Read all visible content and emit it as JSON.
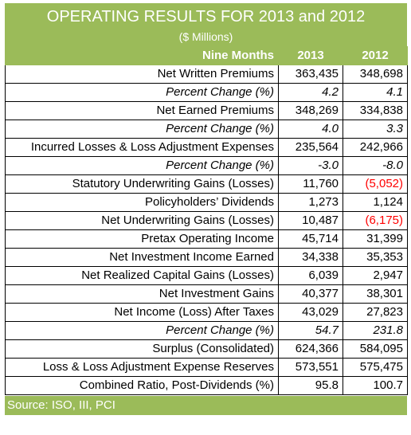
{
  "title": "OPERATING RESULTS FOR 2013 and 2012",
  "subtitle": "($ Millions)",
  "header": {
    "label": "Nine Months",
    "col1": "2013",
    "col2": "2012"
  },
  "rows": [
    {
      "label": "Net Written Premiums",
      "v2013": "363,435",
      "v2012": "348,698"
    },
    {
      "label": "Percent Change (%)",
      "v2013": "4.2",
      "v2012": "4.1"
    },
    {
      "label": "Net Earned Premiums",
      "v2013": "348,269",
      "v2012": "334,838"
    },
    {
      "label": "Percent Change (%)",
      "v2013": "4.0",
      "v2012": "3.3"
    },
    {
      "label": "Incurred Losses & Loss Adjustment Expenses",
      "v2013": "235,564",
      "v2012": "242,966"
    },
    {
      "label": "Percent Change (%)",
      "v2013": "-3.0",
      "v2012": "-8.0"
    },
    {
      "label": "Statutory Underwriting Gains (Losses)",
      "v2013": "11,760",
      "v2012": "(5,052)"
    },
    {
      "label": "Policyholders’ Dividends",
      "v2013": "1,273",
      "v2012": "1,124"
    },
    {
      "label": "Net Underwriting Gains (Losses)",
      "v2013": "10,487",
      "v2012": "(6,175)"
    },
    {
      "label": "Pretax Operating Income",
      "v2013": "45,714",
      "v2012": "31,399"
    },
    {
      "label": "Net Investment Income Earned",
      "v2013": "34,338",
      "v2012": "35,353"
    },
    {
      "label": "Net Realized Capital Gains (Losses)",
      "v2013": "6,039",
      "v2012": "2,947"
    },
    {
      "label": "Net Investment Gains",
      "v2013": "40,377",
      "v2012": "38,301"
    },
    {
      "label": "Net Income (Loss) After Taxes",
      "v2013": "43,029",
      "v2012": "27,823"
    },
    {
      "label": "Percent Change (%)",
      "v2013": "54.7",
      "v2012": "231.8"
    },
    {
      "label": "Surplus (Consolidated)",
      "v2013": "624,366",
      "v2012": "584,095"
    },
    {
      "label": "Loss & Loss Adjustment Expense Reserves",
      "v2013": "573,551",
      "v2012": "575,475"
    },
    {
      "label": "Combined Ratio, Post-Dividends (%)",
      "v2013": "95.8",
      "v2012": "100.7"
    }
  ],
  "source": "Source: ISO, III, PCI",
  "colors": {
    "band": "#9bbb59",
    "negative": "#ff0000"
  }
}
